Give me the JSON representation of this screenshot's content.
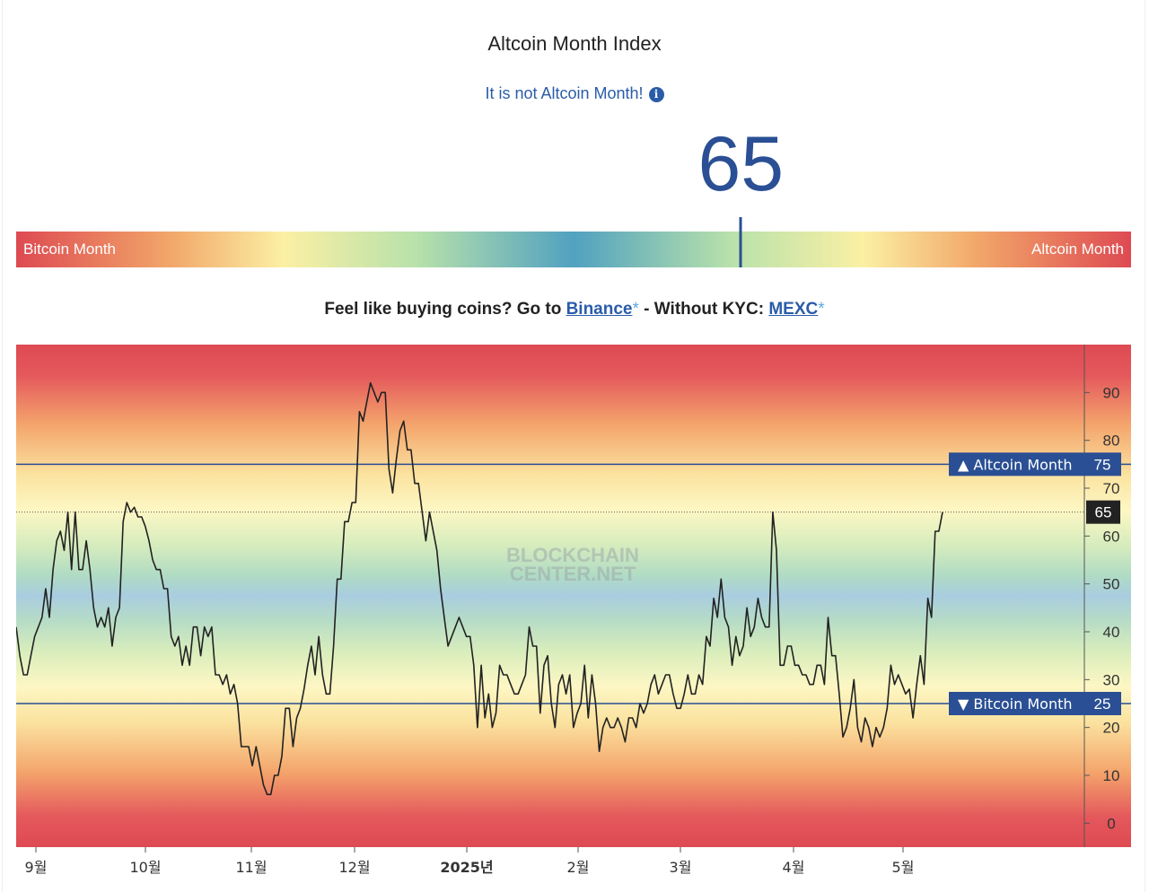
{
  "header": {
    "title": "Altcoin Month Index",
    "status": "It is not Altcoin Month!",
    "info_icon": "info-icon",
    "value": "65"
  },
  "gauge": {
    "left_label": "Bitcoin Month",
    "right_label": "Altcoin Month",
    "marker_value": 65,
    "scale": [
      0,
      100
    ]
  },
  "promo": {
    "prefix": "Feel like buying coins? Go to ",
    "binance": "Binance",
    "star": "*",
    "middle": " - Without KYC: ",
    "mexc": "MEXC"
  },
  "colors": {
    "accent": "#2a4f94",
    "link": "#2a5ca8",
    "danger": "#de4a52"
  },
  "chart_data": {
    "type": "line",
    "title": "",
    "watermark": "BLOCKCHAIN CENTER.NET",
    "xlabel": "",
    "ylabel": "",
    "ylim": [
      -5,
      100
    ],
    "grid": false,
    "x_ticks": [
      "9월",
      "10월",
      "11월",
      "12월",
      "2025년",
      "2월",
      "3월",
      "4월",
      "5월"
    ],
    "y_ticks": [
      0,
      10,
      20,
      30,
      40,
      50,
      60,
      70,
      80,
      90
    ],
    "thresholds": [
      {
        "label": "▲ Altcoin Month",
        "value": 75
      },
      {
        "label": "▼ Bitcoin Month",
        "value": 25
      }
    ],
    "current": {
      "value": 65
    },
    "series": [
      {
        "values": [
          41,
          35,
          31,
          31,
          35,
          39,
          41,
          43,
          49,
          43,
          53,
          59,
          61,
          57,
          65,
          53,
          65,
          53,
          53,
          59,
          53,
          45,
          41,
          43,
          41,
          45,
          37,
          43,
          45,
          63,
          67,
          65,
          66,
          64,
          64,
          62,
          59,
          55,
          53,
          53,
          49,
          49,
          39,
          37,
          39,
          33,
          37,
          33,
          41,
          41,
          35,
          41,
          39,
          41,
          31,
          31,
          29,
          31,
          27,
          29,
          25,
          16,
          16,
          16,
          12,
          16,
          12,
          8,
          6,
          6,
          10,
          10,
          14,
          24,
          24,
          16,
          22,
          24,
          28,
          33,
          37,
          31,
          39,
          31,
          27,
          27,
          37,
          51,
          51,
          63,
          63,
          67,
          67,
          86,
          84,
          88,
          92,
          90,
          88,
          90,
          90,
          74,
          69,
          76,
          82,
          84,
          78,
          78,
          71,
          71,
          65,
          59,
          65,
          61,
          57,
          49,
          43,
          37,
          39,
          41,
          43,
          41,
          39,
          39,
          33,
          20,
          33,
          22,
          27,
          20,
          23,
          33,
          31,
          31,
          29,
          27,
          27,
          29,
          31,
          41,
          37,
          37,
          23,
          33,
          35,
          25,
          20,
          29,
          31,
          27,
          31,
          20,
          23,
          25,
          33,
          22,
          31,
          25,
          15,
          20,
          22,
          20,
          20,
          22,
          20,
          17,
          22,
          22,
          20,
          25,
          23,
          25,
          29,
          31,
          27,
          29,
          31,
          31,
          27,
          24,
          24,
          27,
          31,
          27,
          27,
          31,
          29,
          39,
          37,
          47,
          43,
          51,
          43,
          41,
          33,
          39,
          35,
          37,
          45,
          39,
          41,
          47,
          43,
          41,
          41,
          65,
          57,
          33,
          33,
          37,
          37,
          33,
          33,
          31,
          31,
          29,
          29,
          33,
          33,
          29,
          43,
          35,
          35,
          27,
          18,
          20,
          24,
          30,
          20,
          17,
          22,
          20,
          16,
          20,
          18,
          20,
          24,
          33,
          29,
          31,
          29,
          27,
          28,
          22,
          29,
          35,
          29,
          47,
          43,
          61,
          61,
          65
        ]
      }
    ]
  }
}
